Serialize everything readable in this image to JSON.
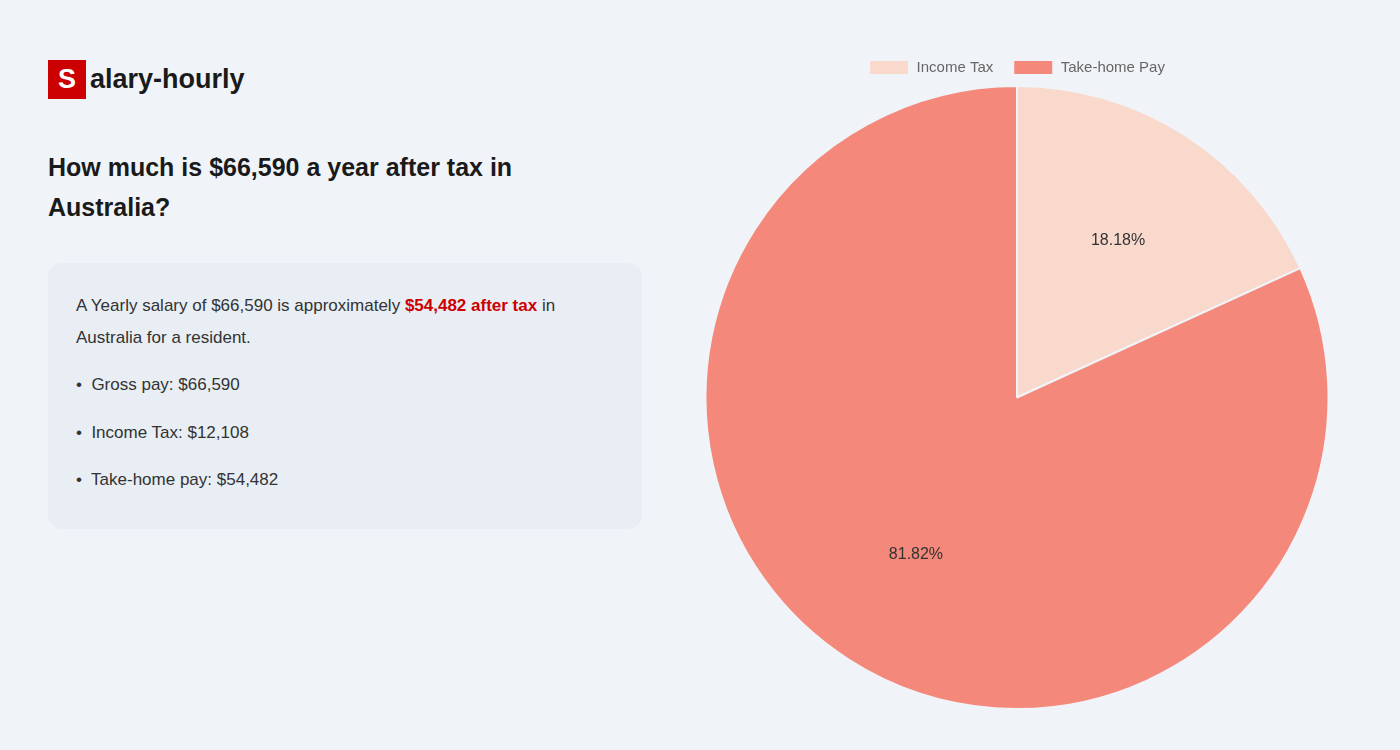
{
  "chart_data": {
    "type": "pie",
    "title": [
      "How much is $66,590 a year after tax in",
      "Australia?"
    ],
    "annotations": [
      [
        {
          "text": "S",
          "color": "#ffffff",
          "background": "#cc0000",
          "bold": true
        },
        {
          "text": "alary-hourly",
          "color": "#1a1a1a",
          "bold": true
        }
      ],
      [
        {
          "text": "A Yearly salary of $66,590 is approximately ",
          "color": "#333333"
        },
        {
          "text": "$54,482 after tax",
          "color": "#cc0000",
          "bold": true
        },
        {
          "text": " in",
          "color": "#333333"
        }
      ],
      [
        {
          "text": "Australia for a resident.",
          "color": "#333333"
        }
      ],
      [
        {
          "text": "•  Gross pay: $66,590",
          "color": "#333333"
        }
      ],
      [
        {
          "text": "•  Income Tax: $12,108",
          "color": "#333333"
        }
      ],
      [
        {
          "text": "•  Take-home pay: $54,482",
          "color": "#333333"
        }
      ]
    ],
    "categories": [
      "Income Tax",
      "Take-home Pay"
    ],
    "values": [
      18.18,
      81.82
    ],
    "value_labels": [
      "18.18%",
      "81.82%"
    ],
    "colors": [
      "#f9d9cc",
      "#f4897b"
    ],
    "data_labels": true,
    "legend": "top"
  }
}
